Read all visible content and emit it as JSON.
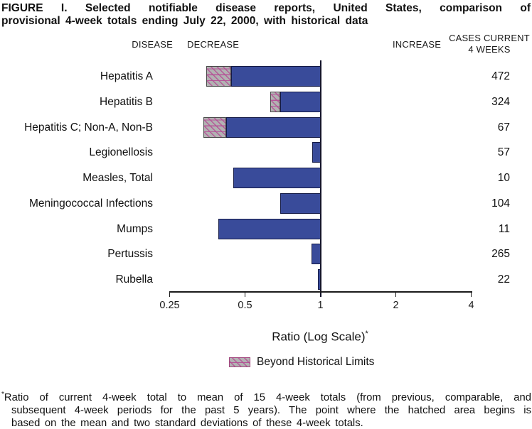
{
  "title": {
    "line1": "FIGURE I. Selected notifiable disease reports, United States, comparison of",
    "line2": "provisional 4-week totals ending July 22, 2000, with historical data"
  },
  "headers": {
    "disease": "DISEASE",
    "decrease": "DECREASE",
    "increase": "INCREASE",
    "cases_line1": "CASES CURRENT",
    "cases_line2": "4 WEEKS"
  },
  "chart_data": {
    "type": "bar",
    "orientation": "horizontal",
    "scale": "log2",
    "x_range": [
      0.25,
      4
    ],
    "x_ticks": [
      "0.25",
      "0.5",
      "1",
      "2",
      "4"
    ],
    "x_tick_values": [
      0.25,
      0.5,
      1,
      2,
      4
    ],
    "baseline_ratio": 1,
    "xlabel": "Ratio (Log Scale)",
    "xlabel_marker": "*",
    "rows": [
      {
        "disease": "Hepatitis A",
        "cases": "472",
        "ratio": 0.44,
        "beyond_limit_start": 0.35
      },
      {
        "disease": "Hepatitis B",
        "cases": "324",
        "ratio": 0.69,
        "beyond_limit_start": 0.63
      },
      {
        "disease": "Hepatitis C; Non-A, Non-B",
        "cases": "67",
        "ratio": 0.42,
        "beyond_limit_start": 0.34
      },
      {
        "disease": "Legionellosis",
        "cases": "57",
        "ratio": 0.93,
        "beyond_limit_start": null
      },
      {
        "disease": "Measles, Total",
        "cases": "10",
        "ratio": 0.45,
        "beyond_limit_start": null
      },
      {
        "disease": "Meningococcal Infections",
        "cases": "104",
        "ratio": 0.69,
        "beyond_limit_start": null
      },
      {
        "disease": "Mumps",
        "cases": "11",
        "ratio": 0.39,
        "beyond_limit_start": null
      },
      {
        "disease": "Pertussis",
        "cases": "265",
        "ratio": 0.92,
        "beyond_limit_start": null
      },
      {
        "disease": "Rubella",
        "cases": "22",
        "ratio": 0.98,
        "beyond_limit_start": null
      }
    ],
    "legend": {
      "label": "Beyond Historical Limits"
    }
  },
  "footnote": {
    "marker": "*",
    "line1": "Ratio of current 4-week total to mean of 15 4-week totals (from previous, comparable, and",
    "line2": "subsequent 4-week periods for the past 5 years). The point where the hatched area begins is",
    "line3": "based on the mean and two standard deviations of these 4-week totals."
  },
  "colors": {
    "bar": "#394B9A",
    "bar_border": "#141A45",
    "hatch_background": "#B2B2B2",
    "hatch_line": "#B55096",
    "axis": "#1A1A1A"
  }
}
